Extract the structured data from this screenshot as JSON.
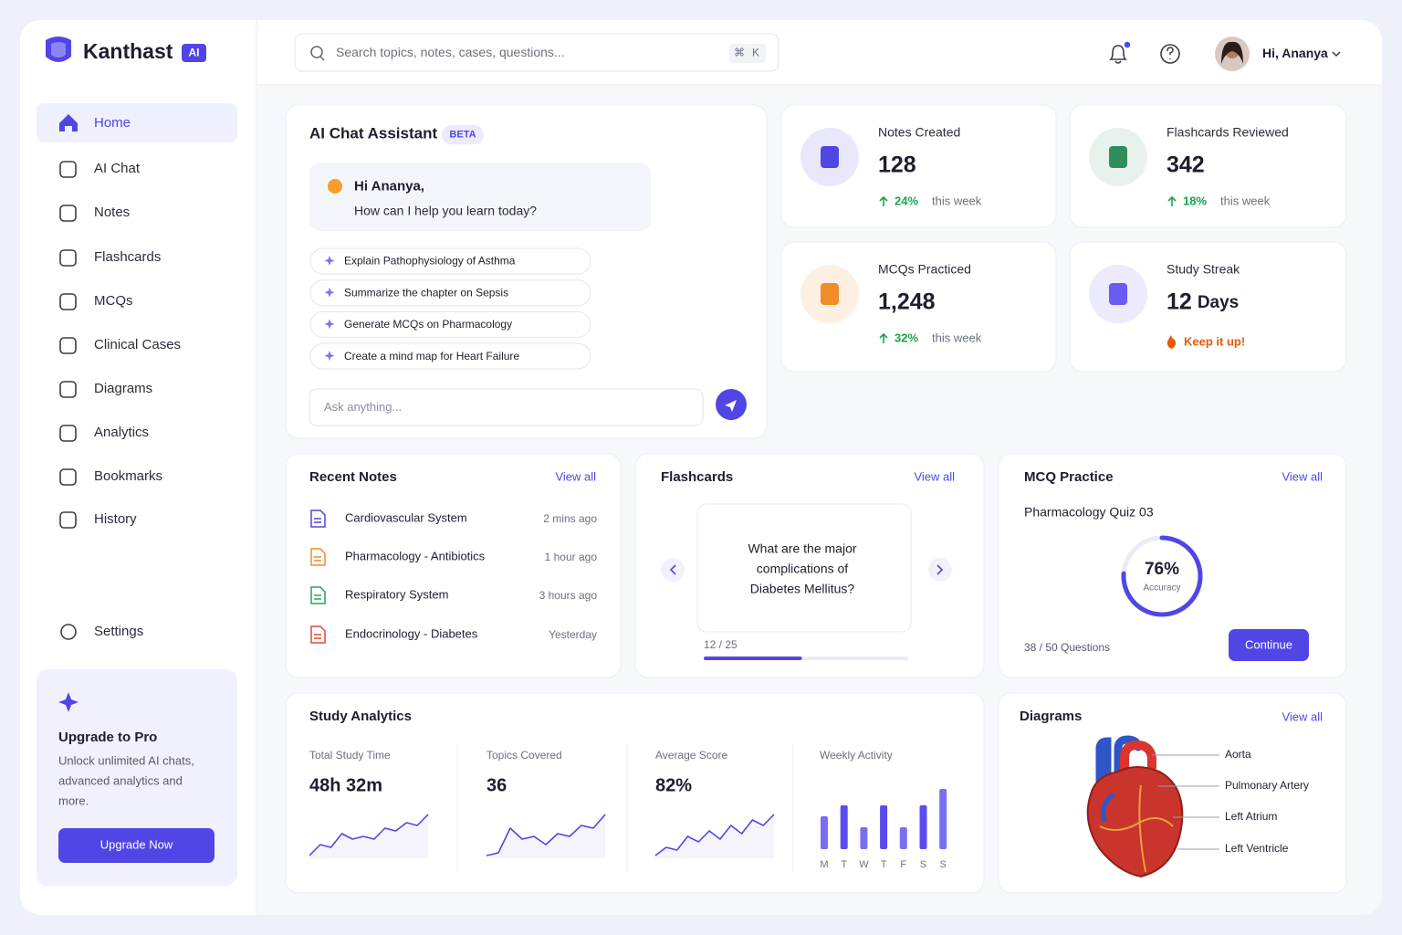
{
  "brand": {
    "name": "Kanthast",
    "badge": "AI"
  },
  "nav": {
    "items": [
      "Home",
      "AI Chat",
      "Notes",
      "Flashcards",
      "MCQs",
      "Clinical Cases",
      "Diagrams",
      "Analytics",
      "Bookmarks",
      "History"
    ],
    "active": 0,
    "settings": "Settings"
  },
  "upgrade": {
    "title": "Upgrade to Pro",
    "text": [
      "Unlock unlimited AI chats,",
      "advanced analytics and",
      "more."
    ],
    "button": "Upgrade Now"
  },
  "search": {
    "placeholder": "Search topics, notes, cases, questions...",
    "shortcut": [
      "⌘",
      "K"
    ]
  },
  "user": {
    "greeting": "Hi, Ananya"
  },
  "chat": {
    "title": "AI Chat Assistant",
    "badge": "BETA",
    "greeting": "Hi Ananya,",
    "prompt": "How can I help you learn today?",
    "suggestions": [
      "Explain Pathophysiology of Asthma",
      "Summarize the chapter on Sepsis",
      "Generate MCQs on Pharmacology",
      "Create a mind map for Heart Failure"
    ],
    "input_placeholder": "Ask anything..."
  },
  "stats": [
    {
      "label": "Notes Created",
      "value": "128",
      "change": "24%",
      "period": "this week"
    },
    {
      "label": "Flashcards Reviewed",
      "value": "342",
      "change": "18%",
      "period": "this week"
    },
    {
      "label": "MCQs Practiced",
      "value": "1,248",
      "change": "32%",
      "period": "this week"
    },
    {
      "label": "Study Streak",
      "value": "12",
      "unit": "Days",
      "note": "Keep it up!"
    }
  ],
  "recent_notes": {
    "title": "Recent Notes",
    "view_all": "View all",
    "items": [
      {
        "title": "Cardiovascular System",
        "time": "2 mins ago"
      },
      {
        "title": "Pharmacology - Antibiotics",
        "time": "1 hour ago"
      },
      {
        "title": "Respiratory System",
        "time": "3 hours ago"
      },
      {
        "title": "Endocrinology - Diabetes",
        "time": "Yesterday"
      }
    ]
  },
  "flashcards": {
    "title": "Flashcards",
    "view_all": "View all",
    "question": [
      "What are the major",
      "complications of",
      "Diabetes Mellitus?"
    ],
    "progress_label": "12 / 25",
    "progress": {
      "current": 12,
      "total": 25
    }
  },
  "mcq": {
    "title": "MCQ Practice",
    "view_all": "View all",
    "quiz": "Pharmacology Quiz 03",
    "accuracy": {
      "value": 76,
      "label": "76%"
    },
    "accuracy_caption": "Accuracy",
    "questions": "38 / 50 Questions",
    "button": "Continue"
  },
  "analytics": {
    "title": "Study Analytics",
    "metrics": [
      {
        "label": "Total Study Time",
        "value": "48h 32m",
        "trend": [
          2,
          6,
          5,
          10,
          8,
          9,
          8,
          12,
          11,
          14,
          13,
          17
        ]
      },
      {
        "label": "Topics Covered",
        "value": "36",
        "trend": [
          2,
          3,
          12,
          8,
          9,
          6,
          10,
          9,
          13,
          12,
          17
        ]
      },
      {
        "label": "Average Score",
        "value": "82%",
        "trend": [
          2,
          5,
          4,
          9,
          7,
          11,
          8,
          13,
          10,
          15,
          13,
          17
        ]
      }
    ],
    "weekly": {
      "label": "Weekly Activity",
      "days": [
        "M",
        "T",
        "W",
        "T",
        "F",
        "S",
        "S"
      ],
      "values": [
        6,
        8,
        4,
        8,
        4,
        8,
        11
      ],
      "ylim": [
        0,
        12
      ]
    }
  },
  "diagrams": {
    "title": "Diagrams",
    "view_all": "View all",
    "labels": [
      "Aorta",
      "Pulmonary Artery",
      "Left Atrium",
      "Left Ventricle"
    ]
  }
}
